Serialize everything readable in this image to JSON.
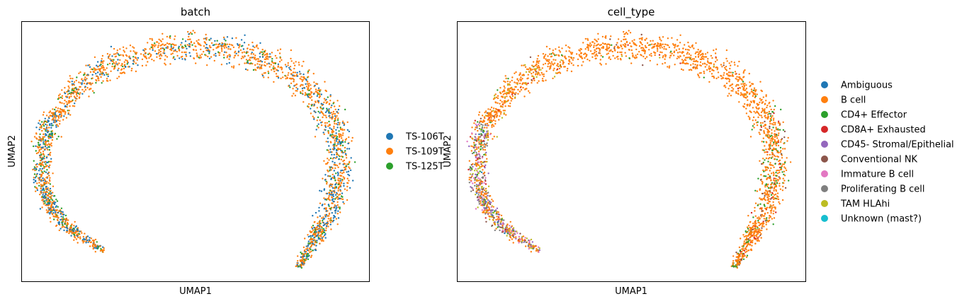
{
  "chart_data": [
    {
      "type": "scatter",
      "title": "batch",
      "xlabel": "UMAP1",
      "ylabel": "UMAP2",
      "grid": false,
      "ticks": false,
      "legend_position": "right",
      "legend": [
        {
          "label": "TS-106T",
          "color": "#1f77b4"
        },
        {
          "label": "TS-109T",
          "color": "#ff7f0e"
        },
        {
          "label": "TS-125T",
          "color": "#2ca02c"
        }
      ],
      "point_mix": {
        "TS-106T": 0.18,
        "TS-109T": 0.72,
        "TS-125T": 0.1
      }
    },
    {
      "type": "scatter",
      "title": "cell_type",
      "xlabel": "UMAP1",
      "ylabel": "UMAP2",
      "grid": false,
      "ticks": false,
      "legend_position": "right",
      "legend": [
        {
          "label": "Ambiguous",
          "color": "#1f77b4"
        },
        {
          "label": "B cell",
          "color": "#ff7f0e"
        },
        {
          "label": "CD4+ Effector",
          "color": "#2ca02c"
        },
        {
          "label": "CD8A+ Exhausted",
          "color": "#d62728"
        },
        {
          "label": "CD45- Stromal/Epithelial",
          "color": "#9467bd"
        },
        {
          "label": "Conventional NK",
          "color": "#8c564b"
        },
        {
          "label": "Immature B cell",
          "color": "#e377c2"
        },
        {
          "label": "Proliferating B cell",
          "color": "#7f7f7f"
        },
        {
          "label": "TAM HLAhi",
          "color": "#bcbd22"
        },
        {
          "label": "Unknown (mast?)",
          "color": "#17becf"
        }
      ]
    }
  ]
}
